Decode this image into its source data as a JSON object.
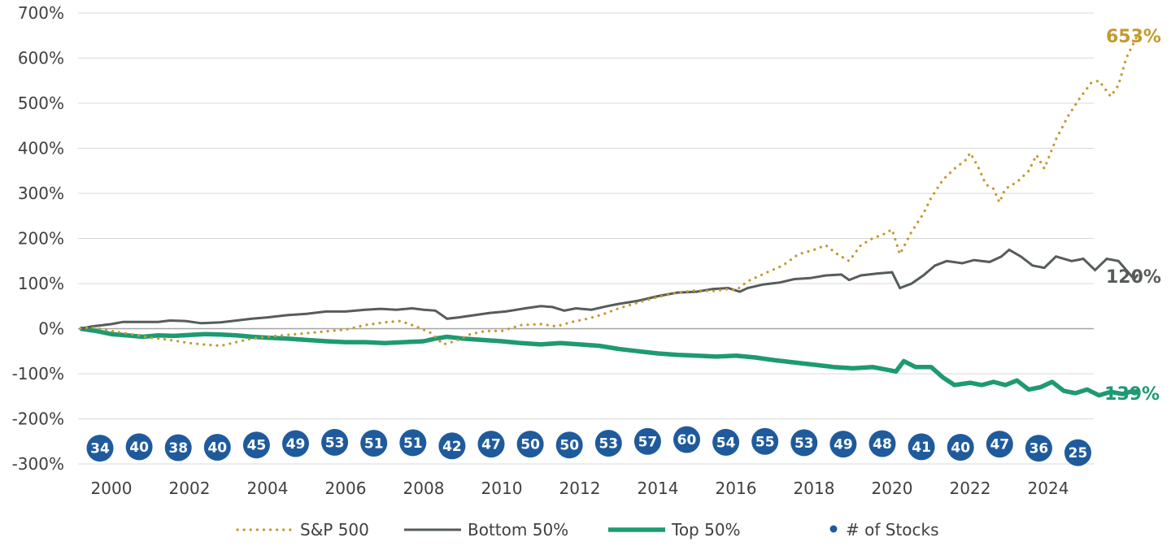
{
  "chart_data": {
    "type": "line",
    "title": "",
    "xlabel": "",
    "ylabel": "",
    "ylim": [
      -300,
      700
    ],
    "xlim": [
      1999.2,
      2025.3
    ],
    "y_ticks": [
      700,
      600,
      500,
      400,
      300,
      200,
      100,
      0,
      -100,
      -200,
      -300
    ],
    "y_tick_labels": [
      "700%",
      "600%",
      "500%",
      "400%",
      "300%",
      "200%",
      "100%",
      "0%",
      "-100%",
      "-200%",
      "-300%"
    ],
    "x_ticks": [
      2000,
      2002,
      2004,
      2006,
      2008,
      2010,
      2012,
      2014,
      2016,
      2018,
      2020,
      2022,
      2024
    ],
    "x_tick_labels": [
      "2000",
      "2002",
      "2004",
      "2006",
      "2008",
      "2010",
      "2012",
      "2014",
      "2016",
      "2018",
      "2020",
      "2022",
      "2024"
    ],
    "series": [
      {
        "name": "S&P 500",
        "color": "#c49a2e",
        "style": "dotted",
        "end_label": "653%",
        "points": [
          [
            1999.2,
            0
          ],
          [
            1999.5,
            3
          ],
          [
            2000.0,
            -5
          ],
          [
            2000.5,
            -12
          ],
          [
            2001.0,
            -20
          ],
          [
            2001.5,
            -25
          ],
          [
            2002.0,
            -32
          ],
          [
            2002.5,
            -36
          ],
          [
            2002.8,
            -38
          ],
          [
            2003.2,
            -30
          ],
          [
            2003.6,
            -22
          ],
          [
            2004.0,
            -18
          ],
          [
            2004.5,
            -14
          ],
          [
            2005.0,
            -10
          ],
          [
            2005.5,
            -6
          ],
          [
            2006.0,
            -2
          ],
          [
            2006.5,
            8
          ],
          [
            2007.0,
            14
          ],
          [
            2007.4,
            17
          ],
          [
            2007.8,
            5
          ],
          [
            2008.2,
            -10
          ],
          [
            2008.5,
            -35
          ],
          [
            2008.8,
            -28
          ],
          [
            2009.2,
            -12
          ],
          [
            2009.6,
            -5
          ],
          [
            2010.0,
            -5
          ],
          [
            2010.5,
            8
          ],
          [
            2011.0,
            10
          ],
          [
            2011.4,
            5
          ],
          [
            2011.8,
            15
          ],
          [
            2012.2,
            22
          ],
          [
            2012.6,
            32
          ],
          [
            2013.0,
            45
          ],
          [
            2013.5,
            58
          ],
          [
            2014.0,
            70
          ],
          [
            2014.5,
            80
          ],
          [
            2015.0,
            85
          ],
          [
            2015.4,
            83
          ],
          [
            2015.8,
            88
          ],
          [
            2016.0,
            85
          ],
          [
            2016.3,
            105
          ],
          [
            2016.8,
            125
          ],
          [
            2017.2,
            140
          ],
          [
            2017.6,
            165
          ],
          [
            2018.0,
            175
          ],
          [
            2018.3,
            185
          ],
          [
            2018.6,
            165
          ],
          [
            2018.9,
            150
          ],
          [
            2019.2,
            185
          ],
          [
            2019.5,
            200
          ],
          [
            2019.8,
            210
          ],
          [
            2020.0,
            220
          ],
          [
            2020.2,
            165
          ],
          [
            2020.5,
            215
          ],
          [
            2020.8,
            255
          ],
          [
            2021.0,
            290
          ],
          [
            2021.3,
            330
          ],
          [
            2021.6,
            355
          ],
          [
            2021.9,
            375
          ],
          [
            2022.0,
            390
          ],
          [
            2022.2,
            360
          ],
          [
            2022.4,
            320
          ],
          [
            2022.6,
            310
          ],
          [
            2022.75,
            280
          ],
          [
            2022.9,
            310
          ],
          [
            2023.2,
            325
          ],
          [
            2023.5,
            350
          ],
          [
            2023.7,
            385
          ],
          [
            2023.9,
            355
          ],
          [
            2024.2,
            420
          ],
          [
            2024.5,
            470
          ],
          [
            2024.8,
            510
          ],
          [
            2025.1,
            545
          ],
          [
            2025.3,
            550
          ],
          [
            2025.6,
            515
          ],
          [
            2025.8,
            540
          ],
          [
            2026.0,
            600
          ],
          [
            2026.3,
            653
          ]
        ]
      },
      {
        "name": "Bottom 50%",
        "color": "#565c59",
        "style": "solid",
        "end_label": "120%",
        "points": [
          [
            1999.2,
            0
          ],
          [
            1999.5,
            5
          ],
          [
            2000.0,
            10
          ],
          [
            2000.3,
            15
          ],
          [
            2000.8,
            15
          ],
          [
            2001.2,
            15
          ],
          [
            2001.5,
            18
          ],
          [
            2001.9,
            17
          ],
          [
            2002.3,
            12
          ],
          [
            2002.8,
            14
          ],
          [
            2003.2,
            18
          ],
          [
            2003.6,
            22
          ],
          [
            2004.0,
            25
          ],
          [
            2004.5,
            30
          ],
          [
            2005.0,
            33
          ],
          [
            2005.5,
            38
          ],
          [
            2006.0,
            38
          ],
          [
            2006.5,
            42
          ],
          [
            2006.9,
            44
          ],
          [
            2007.3,
            42
          ],
          [
            2007.7,
            45
          ],
          [
            2008.0,
            42
          ],
          [
            2008.3,
            40
          ],
          [
            2008.6,
            22
          ],
          [
            2008.9,
            25
          ],
          [
            2009.3,
            30
          ],
          [
            2009.7,
            35
          ],
          [
            2010.1,
            38
          ],
          [
            2010.6,
            45
          ],
          [
            2011.0,
            50
          ],
          [
            2011.3,
            48
          ],
          [
            2011.6,
            40
          ],
          [
            2011.9,
            45
          ],
          [
            2012.3,
            42
          ],
          [
            2012.7,
            50
          ],
          [
            2013.0,
            55
          ],
          [
            2013.5,
            62
          ],
          [
            2014.0,
            72
          ],
          [
            2014.5,
            80
          ],
          [
            2015.0,
            82
          ],
          [
            2015.4,
            88
          ],
          [
            2015.8,
            90
          ],
          [
            2016.1,
            82
          ],
          [
            2016.3,
            90
          ],
          [
            2016.7,
            98
          ],
          [
            2017.1,
            102
          ],
          [
            2017.5,
            110
          ],
          [
            2017.9,
            112
          ],
          [
            2018.3,
            118
          ],
          [
            2018.7,
            120
          ],
          [
            2018.9,
            108
          ],
          [
            2019.2,
            118
          ],
          [
            2019.6,
            122
          ],
          [
            2020.0,
            125
          ],
          [
            2020.2,
            90
          ],
          [
            2020.5,
            100
          ],
          [
            2020.8,
            118
          ],
          [
            2021.1,
            140
          ],
          [
            2021.4,
            150
          ],
          [
            2021.8,
            145
          ],
          [
            2022.1,
            152
          ],
          [
            2022.5,
            148
          ],
          [
            2022.8,
            160
          ],
          [
            2023.0,
            175
          ],
          [
            2023.3,
            160
          ],
          [
            2023.6,
            140
          ],
          [
            2023.9,
            135
          ],
          [
            2024.2,
            160
          ],
          [
            2024.6,
            150
          ],
          [
            2024.9,
            155
          ],
          [
            2025.2,
            130
          ],
          [
            2025.5,
            155
          ],
          [
            2025.8,
            150
          ],
          [
            2026.0,
            130
          ],
          [
            2026.2,
            110
          ],
          [
            2026.3,
            120
          ]
        ]
      },
      {
        "name": "Top 50%",
        "color": "#1e9a72",
        "style": "thick",
        "end_label": "-139%",
        "points": [
          [
            1999.2,
            0
          ],
          [
            1999.6,
            -5
          ],
          [
            2000.0,
            -12
          ],
          [
            2000.4,
            -15
          ],
          [
            2000.8,
            -18
          ],
          [
            2001.2,
            -15
          ],
          [
            2001.6,
            -16
          ],
          [
            2002.0,
            -14
          ],
          [
            2002.4,
            -12
          ],
          [
            2002.8,
            -13
          ],
          [
            2003.2,
            -15
          ],
          [
            2003.6,
            -18
          ],
          [
            2004.0,
            -20
          ],
          [
            2004.5,
            -22
          ],
          [
            2005.0,
            -25
          ],
          [
            2005.5,
            -28
          ],
          [
            2006.0,
            -30
          ],
          [
            2006.5,
            -30
          ],
          [
            2007.0,
            -32
          ],
          [
            2007.5,
            -30
          ],
          [
            2008.0,
            -28
          ],
          [
            2008.3,
            -22
          ],
          [
            2008.6,
            -18
          ],
          [
            2009.0,
            -22
          ],
          [
            2009.5,
            -25
          ],
          [
            2010.0,
            -28
          ],
          [
            2010.5,
            -32
          ],
          [
            2011.0,
            -35
          ],
          [
            2011.5,
            -32
          ],
          [
            2012.0,
            -35
          ],
          [
            2012.5,
            -38
          ],
          [
            2013.0,
            -45
          ],
          [
            2013.5,
            -50
          ],
          [
            2014.0,
            -55
          ],
          [
            2014.5,
            -58
          ],
          [
            2015.0,
            -60
          ],
          [
            2015.5,
            -62
          ],
          [
            2016.0,
            -60
          ],
          [
            2016.5,
            -64
          ],
          [
            2017.0,
            -70
          ],
          [
            2017.5,
            -75
          ],
          [
            2018.0,
            -80
          ],
          [
            2018.5,
            -85
          ],
          [
            2019.0,
            -88
          ],
          [
            2019.5,
            -85
          ],
          [
            2019.8,
            -90
          ],
          [
            2020.1,
            -95
          ],
          [
            2020.3,
            -72
          ],
          [
            2020.6,
            -85
          ],
          [
            2021.0,
            -85
          ],
          [
            2021.3,
            -108
          ],
          [
            2021.6,
            -125
          ],
          [
            2022.0,
            -120
          ],
          [
            2022.3,
            -125
          ],
          [
            2022.6,
            -118
          ],
          [
            2022.9,
            -125
          ],
          [
            2023.2,
            -115
          ],
          [
            2023.5,
            -135
          ],
          [
            2023.8,
            -130
          ],
          [
            2024.1,
            -118
          ],
          [
            2024.4,
            -138
          ],
          [
            2024.7,
            -143
          ],
          [
            2025.0,
            -135
          ],
          [
            2025.3,
            -148
          ],
          [
            2025.6,
            -140
          ],
          [
            2025.9,
            -145
          ],
          [
            2026.1,
            -140
          ],
          [
            2026.3,
            -139
          ]
        ]
      }
    ],
    "stock_counts": {
      "name": "# of Stocks",
      "color": "#1f5b9c",
      "points": [
        [
          2000,
          -265,
          "34"
        ],
        [
          2001,
          -262,
          "40"
        ],
        [
          2002,
          -264,
          "38"
        ],
        [
          2003,
          -263,
          "40"
        ],
        [
          2004,
          -258,
          "45"
        ],
        [
          2005,
          -255,
          "49"
        ],
        [
          2006,
          -252,
          "53"
        ],
        [
          2007,
          -254,
          "51"
        ],
        [
          2008,
          -253,
          "51"
        ],
        [
          2009,
          -260,
          "42"
        ],
        [
          2010,
          -256,
          "47"
        ],
        [
          2011,
          -256,
          "50"
        ],
        [
          2012,
          -258,
          "50"
        ],
        [
          2013,
          -254,
          "53"
        ],
        [
          2014,
          -250,
          "57"
        ],
        [
          2015,
          -246,
          "60"
        ],
        [
          2016,
          -252,
          "54"
        ],
        [
          2017,
          -250,
          "55"
        ],
        [
          2018,
          -253,
          "53"
        ],
        [
          2019,
          -256,
          "49"
        ],
        [
          2020,
          -255,
          "48"
        ],
        [
          2021,
          -262,
          "41"
        ],
        [
          2022,
          -263,
          "40"
        ],
        [
          2023,
          -256,
          "47"
        ],
        [
          2024,
          -265,
          "36"
        ],
        [
          2025,
          -275,
          "25"
        ]
      ]
    },
    "legend": {
      "position": "bottom",
      "items": [
        {
          "label": "S&P 500",
          "style": "dotted",
          "color": "#c49a2e"
        },
        {
          "label": "Bottom 50%",
          "style": "solid",
          "color": "#565c59"
        },
        {
          "label": "Top 50%",
          "style": "thick",
          "color": "#1e9a72"
        },
        {
          "label": "# of Stocks",
          "style": "dot",
          "color": "#1f5b9c"
        }
      ]
    }
  }
}
